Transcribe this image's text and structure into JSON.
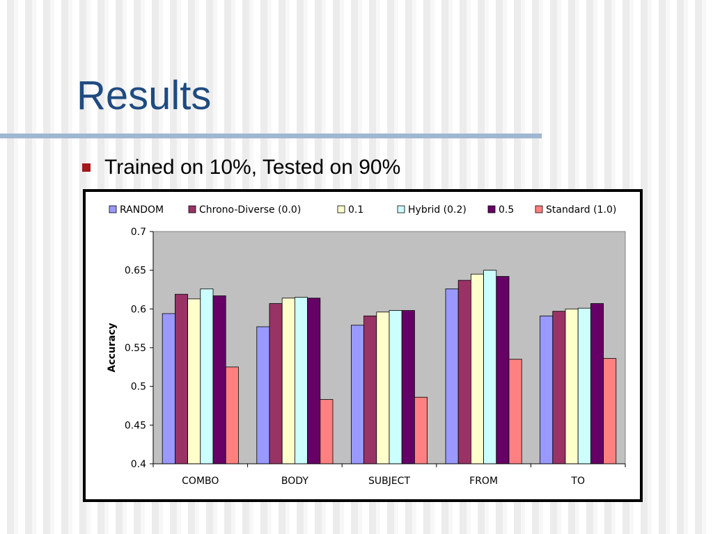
{
  "slide": {
    "title": "Results",
    "bullet": "Trained on 10%, Tested on 90%"
  },
  "chart_data": {
    "type": "bar",
    "title": "",
    "xlabel": "",
    "ylabel": "Accuracy",
    "ylim": [
      0.4,
      0.7
    ],
    "yticks": [
      "0.7",
      "0.65",
      "0.6",
      "0.55",
      "0.5",
      "0.45",
      "0.4"
    ],
    "grid": false,
    "legend_position": "top",
    "plot_background": "#c0c0c0",
    "categories": [
      "COMBO",
      "BODY",
      "SUBJECT",
      "FROM",
      "TO"
    ],
    "series": [
      {
        "name": "RANDOM",
        "color": "#9999ff",
        "values": [
          0.594,
          0.577,
          0.579,
          0.626,
          0.591
        ]
      },
      {
        "name": "Chrono-Diverse (0.0)",
        "color": "#993366",
        "values": [
          0.619,
          0.607,
          0.591,
          0.637,
          0.597
        ]
      },
      {
        "name": "0.1",
        "color": "#ffffcc",
        "values": [
          0.613,
          0.614,
          0.596,
          0.645,
          0.6
        ]
      },
      {
        "name": "Hybrid (0.2)",
        "color": "#ccffff",
        "values": [
          0.626,
          0.615,
          0.598,
          0.65,
          0.601
        ]
      },
      {
        "name": "0.5",
        "color": "#660066",
        "values": [
          0.617,
          0.614,
          0.598,
          0.642,
          0.607
        ]
      },
      {
        "name": "Standard (1.0)",
        "color": "#ff8080",
        "values": [
          0.525,
          0.483,
          0.486,
          0.535,
          0.536
        ]
      }
    ]
  }
}
